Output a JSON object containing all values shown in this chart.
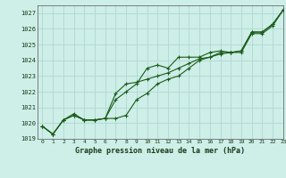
{
  "xlabel": "Graphe pression niveau de la mer (hPa)",
  "ylim": [
    1019,
    1027.5
  ],
  "xlim": [
    -0.5,
    23
  ],
  "yticks": [
    1019,
    1020,
    1021,
    1022,
    1023,
    1024,
    1025,
    1026,
    1027
  ],
  "xticks": [
    0,
    1,
    2,
    3,
    4,
    5,
    6,
    7,
    8,
    9,
    10,
    11,
    12,
    13,
    14,
    15,
    16,
    17,
    18,
    19,
    20,
    21,
    22,
    23
  ],
  "bg_color": "#ceeee8",
  "grid_color": "#aed8d2",
  "line_color": "#1a5c1a",
  "series": [
    [
      1019.8,
      1019.3,
      1020.2,
      1020.6,
      1020.2,
      1020.2,
      1020.3,
      1021.5,
      1022.0,
      1022.5,
      1023.5,
      1023.7,
      1023.5,
      1024.2,
      1024.2,
      1024.2,
      1024.5,
      1024.6,
      1024.5,
      1024.6,
      1025.8,
      1025.8,
      1026.3,
      1027.2
    ],
    [
      1019.8,
      1019.3,
      1020.2,
      1020.5,
      1020.2,
      1020.2,
      1020.3,
      1021.9,
      1022.5,
      1022.6,
      1022.8,
      1023.0,
      1023.2,
      1023.5,
      1023.8,
      1024.1,
      1024.2,
      1024.5,
      1024.5,
      1024.6,
      1025.8,
      1025.8,
      1026.3,
      1027.2
    ],
    [
      1019.8,
      1019.3,
      1020.2,
      1020.5,
      1020.2,
      1020.2,
      1020.3,
      1020.3,
      1020.5,
      1021.5,
      1021.9,
      1022.5,
      1022.8,
      1023.0,
      1023.5,
      1024.0,
      1024.2,
      1024.4,
      1024.5,
      1024.5,
      1025.7,
      1025.7,
      1026.2,
      1027.2
    ]
  ],
  "marker": "+",
  "markersize": 3.5,
  "linewidth": 0.8
}
